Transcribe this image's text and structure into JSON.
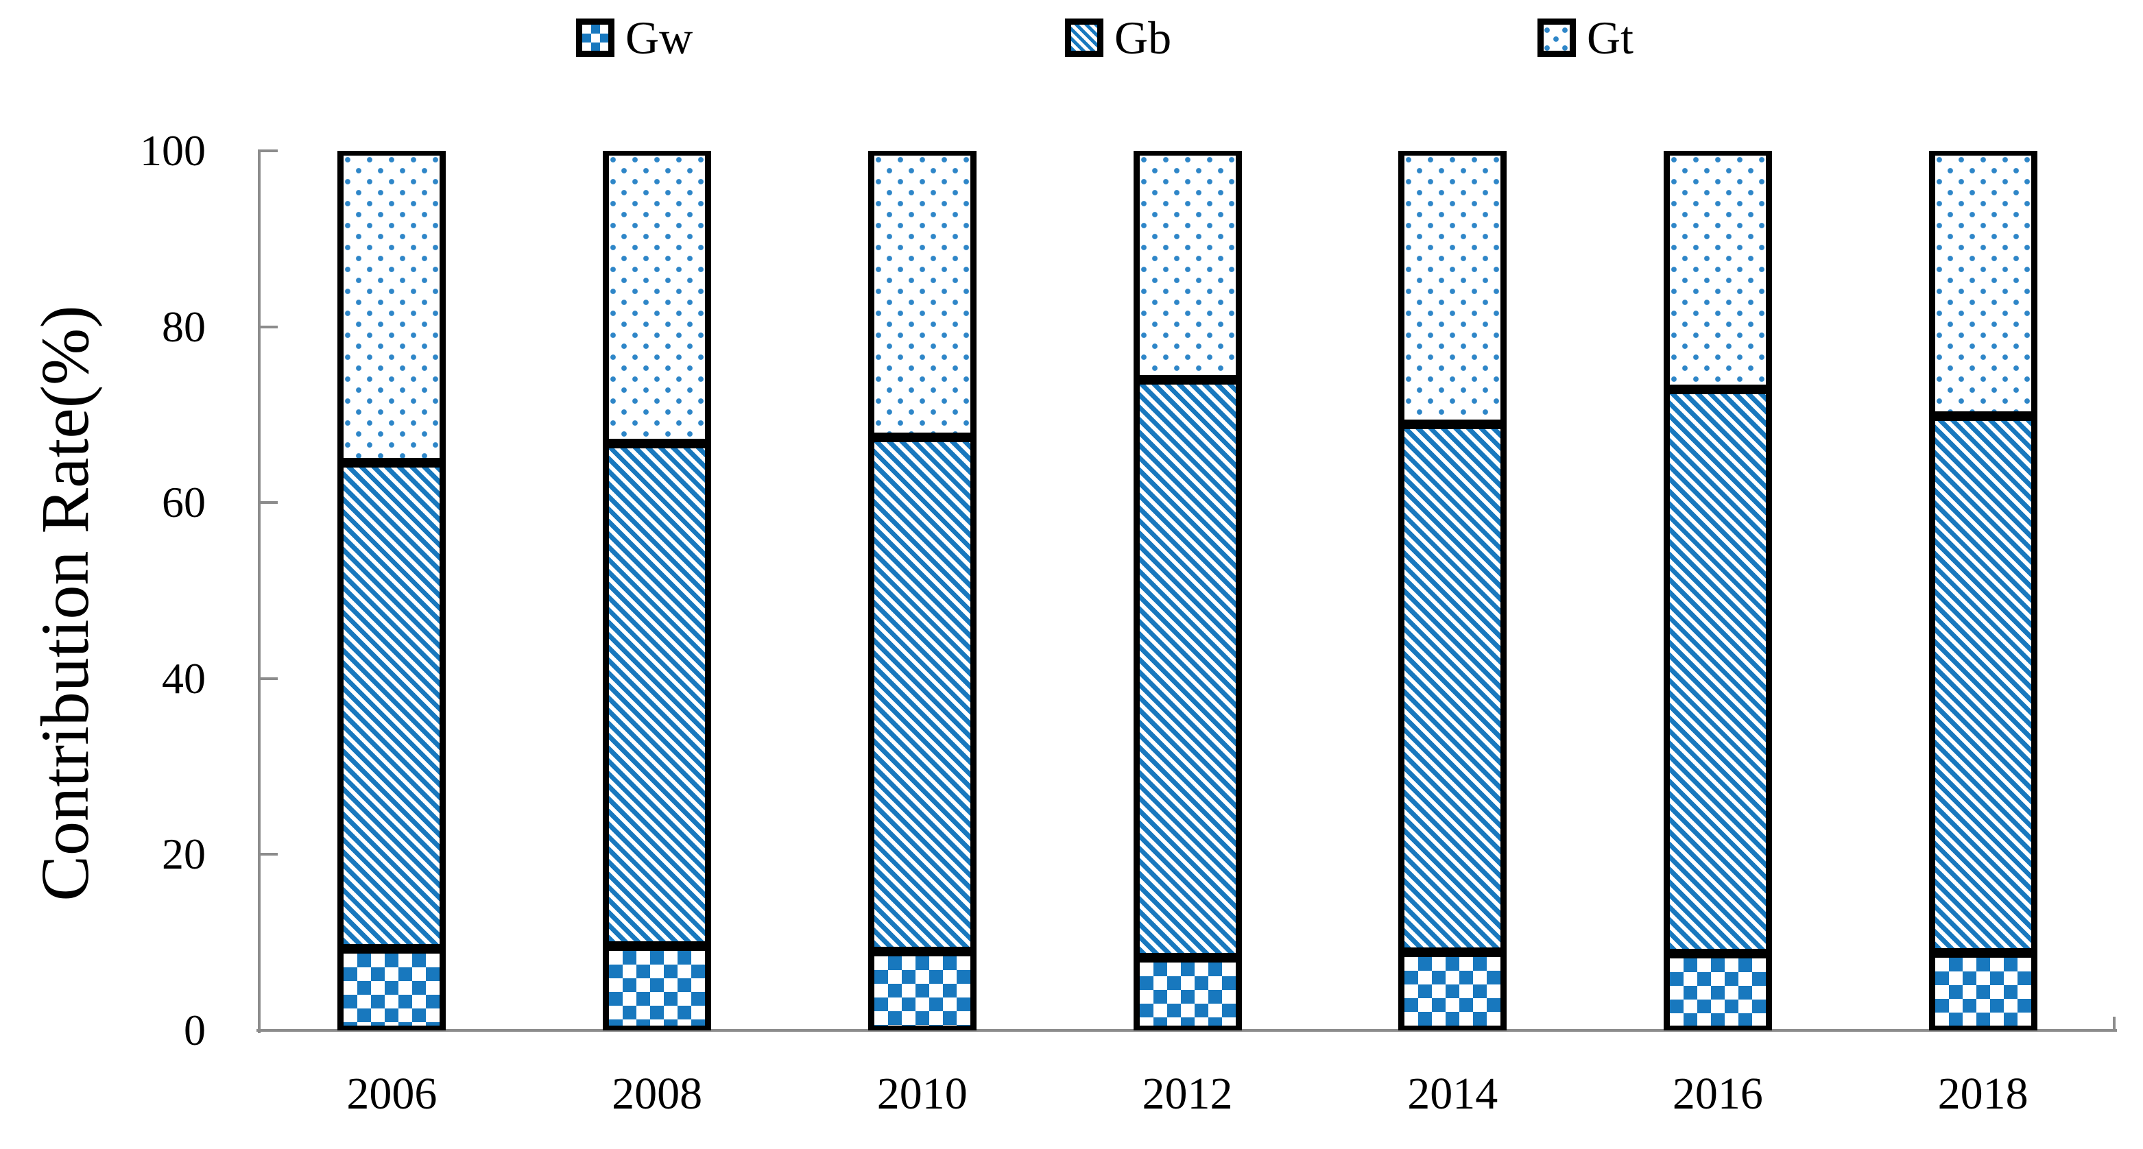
{
  "figure": {
    "colors": {
      "pattern_blue": "#1878BE",
      "dot_blue": "#2E86C8",
      "axis_gray": "#8C8C8C",
      "outline_black": "#000000"
    }
  },
  "legend": {
    "position": "top",
    "items": [
      {
        "label": "Gw",
        "pattern": "checker"
      },
      {
        "label": "Gb",
        "pattern": "stripes"
      },
      {
        "label": "Gt",
        "pattern": "dots"
      }
    ]
  },
  "chart_data": {
    "type": "bar",
    "stacked": true,
    "title": "",
    "xlabel": "",
    "ylabel": "Contribution Rate(%)",
    "categories": [
      "2006",
      "2008",
      "2010",
      "2012",
      "2014",
      "2016",
      "2018"
    ],
    "series": [
      {
        "name": "Gw",
        "pattern": "checker",
        "values": [
          9.3,
          9.6,
          9.0,
          8.3,
          8.9,
          8.7,
          8.8
        ]
      },
      {
        "name": "Gb",
        "pattern": "stripes",
        "values": [
          55.2,
          57.1,
          58.4,
          65.7,
          60.0,
          64.2,
          61.0
        ]
      },
      {
        "name": "Gt",
        "pattern": "dots",
        "values": [
          35.5,
          33.3,
          32.6,
          26.0,
          31.1,
          27.1,
          30.2
        ]
      }
    ],
    "ylim": [
      0,
      100
    ],
    "yticks": [
      0,
      20,
      40,
      60,
      80,
      100
    ],
    "grid": false,
    "legend_position": "top",
    "bar_outline": "black",
    "y_axis_ticks": "inward",
    "x_axis_ticks": "inward"
  }
}
